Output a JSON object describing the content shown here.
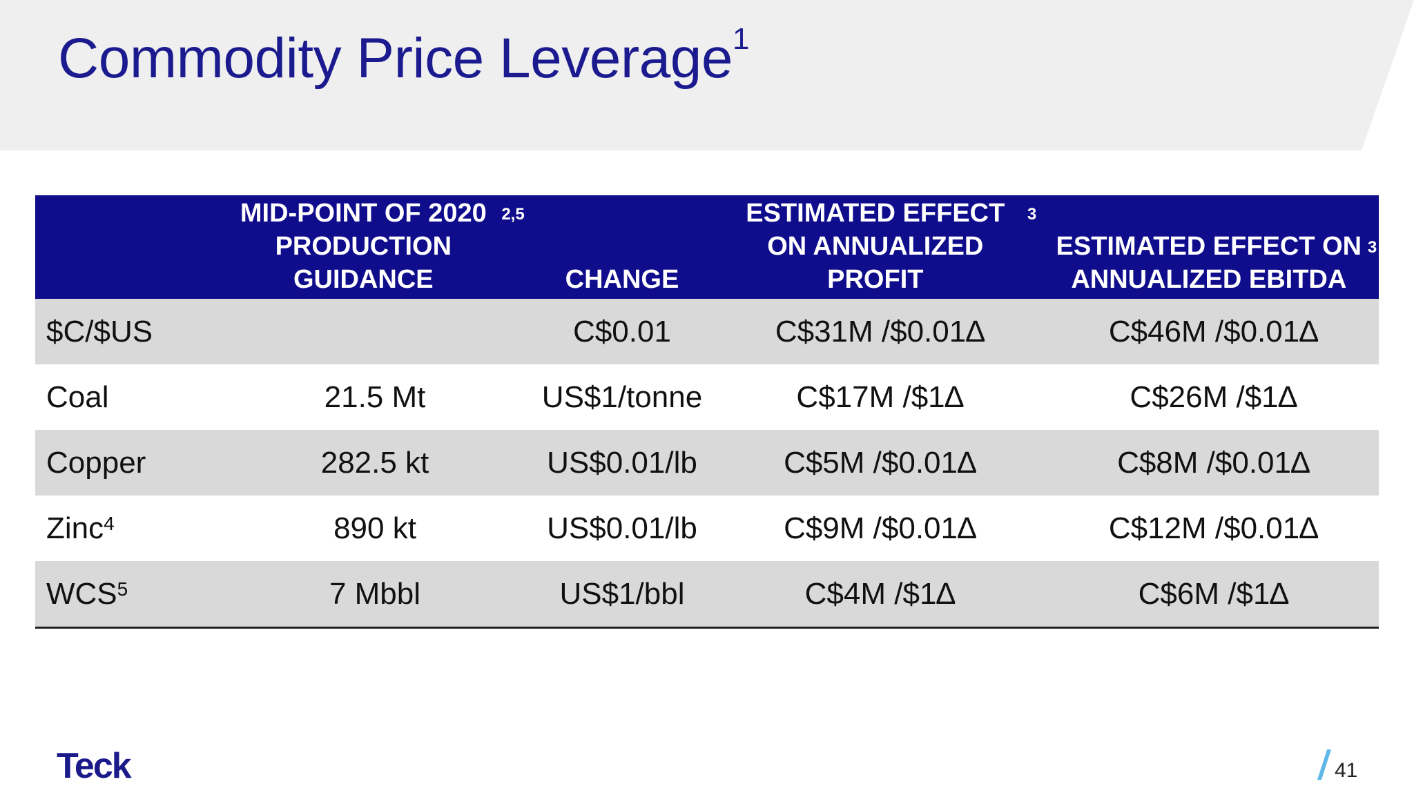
{
  "slide": {
    "title": "Commodity Price Leverage",
    "title_sup": "1",
    "page_number": "41",
    "logo_text": "Teck"
  },
  "table": {
    "headers": [
      {
        "text": "",
        "sup": ""
      },
      {
        "text": "MID-POINT OF 2020 PRODUCTION GUIDANCE",
        "sup": "2,5"
      },
      {
        "text": "CHANGE",
        "sup": ""
      },
      {
        "text": "ESTIMATED EFFECT ON ANNUALIZED PROFIT",
        "sup": "3"
      },
      {
        "text": "ESTIMATED EFFECT ON ANNUALIZED EBITDA",
        "sup": "3"
      }
    ],
    "rows": [
      {
        "name": "$C/$US",
        "sup": "",
        "guidance": "",
        "change": "C$0.01",
        "profit": "C$31M /$0.01∆",
        "ebitda": "C$46M /$0.01∆"
      },
      {
        "name": "Coal",
        "sup": "",
        "guidance": "21.5 Mt",
        "change": "US$1/tonne",
        "profit": "C$17M /$1∆",
        "ebitda": "C$26M /$1∆"
      },
      {
        "name": "Copper",
        "sup": "",
        "guidance": "282.5 kt",
        "change": "US$0.01/lb",
        "profit": "C$5M /$0.01∆",
        "ebitda": "C$8M /$0.01∆"
      },
      {
        "name": "Zinc",
        "sup": "4",
        "guidance": "890 kt",
        "change": "US$0.01/lb",
        "profit": "C$9M /$0.01∆",
        "ebitda": "C$12M /$0.01∆"
      },
      {
        "name": "WCS",
        "sup": "5",
        "guidance": "7 Mbbl",
        "change": "US$1/bbl",
        "profit": "C$4M /$1∆",
        "ebitda": "C$6M /$1∆"
      }
    ]
  },
  "colors": {
    "header_bg": "#0f0d8c",
    "title": "#1b1b8f",
    "band": "#efefef",
    "row_shade": "#d9d9d9",
    "accent": "#5fb8e8"
  }
}
